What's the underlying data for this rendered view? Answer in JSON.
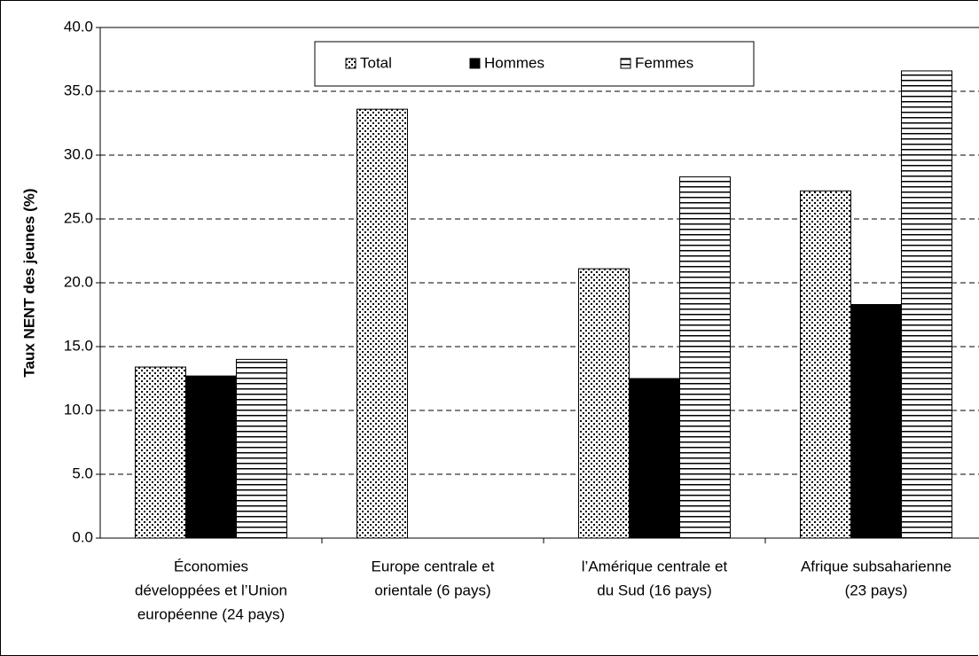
{
  "chart_data": {
    "type": "bar",
    "y_label": "Taux NENT des jeunes (%)",
    "categories": [
      [
        "Économies",
        "développées et l’Union",
        "européenne (24 pays)"
      ],
      [
        "Europe centrale et",
        "orientale (6 pays)"
      ],
      [
        "l’Amérique centrale et",
        "du Sud (16 pays)"
      ],
      [
        "Afrique subsaharienne",
        "(23 pays)"
      ]
    ],
    "series": [
      {
        "name": "Total",
        "color": "#000000",
        "pattern": "dots",
        "values": [
          13.4,
          33.6,
          21.1,
          27.2
        ]
      },
      {
        "name": "Hommes",
        "color": "#000000",
        "pattern": "solid",
        "values": [
          12.7,
          null,
          12.5,
          18.3
        ]
      },
      {
        "name": "Femmes",
        "color": "#000000",
        "pattern": "hlines",
        "values": [
          14.0,
          null,
          28.3,
          36.6
        ]
      }
    ],
    "ylim": [
      0,
      40
    ],
    "yticks": [
      {
        "value": 0,
        "label": "0.0"
      },
      {
        "value": 5,
        "label": "5.0"
      },
      {
        "value": 10,
        "label": "10.0"
      },
      {
        "value": 15,
        "label": "15.0"
      },
      {
        "value": 20,
        "label": "20.0"
      },
      {
        "value": 25,
        "label": "25.0"
      },
      {
        "value": 30,
        "label": "30.0"
      },
      {
        "value": 35,
        "label": "35.0"
      },
      {
        "value": 40,
        "label": "40.0"
      }
    ],
    "grid": true,
    "legend": "top"
  }
}
